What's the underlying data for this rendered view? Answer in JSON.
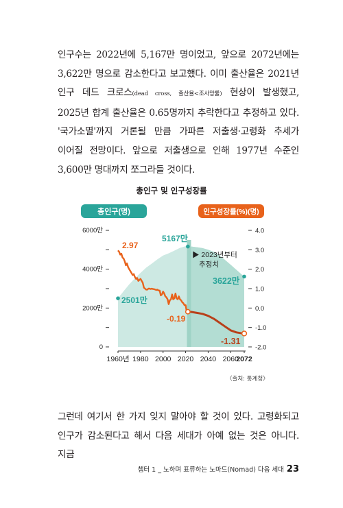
{
  "paragraph1": {
    "a": "인구수는 2022년에 5,167만 명이었고, 앞으로 2072년에는 3,622만 명으로 감소한다고 보고했다. 이미 출산율은 2021년 인구 데드 크로스",
    "small": "(dead cross, 출산율<조사망률)",
    "b": " 현상이 발생했고, 2025년 합계 출산율은 0.65명까지 추락한다고 추정하고 있다. '국가소멸'까지 거론될 만큼 가파른 저출생·고령화 추세가 이어질 전망이다. 앞으로 저출생으로 인해 1977년 수준인 3,600만 명대까지 쪼그라들 것이다."
  },
  "chart_title": "총인구 및 인구성장률",
  "chart_data": {
    "type": "area+line",
    "title": "총인구 및 인구성장률",
    "left_axis_title": "총인구(명)",
    "right_axis_title": "인구성장률(%)(명)",
    "left_ticks": [
      "6000만",
      "4000만",
      "2000만",
      "0"
    ],
    "left_tick_values": [
      6000,
      4000,
      2000,
      0
    ],
    "right_ticks": [
      "4.0",
      "3.0",
      "2.0",
      "1.0",
      "0.0",
      "-1.0",
      "-2.0"
    ],
    "right_tick_values": [
      4,
      3,
      2,
      1,
      0,
      -1,
      -2
    ],
    "x_ticks": [
      "1960년",
      "1980",
      "2000",
      "2020",
      "2040",
      "2060",
      "2072"
    ],
    "x_tick_values": [
      1960,
      1980,
      2000,
      2020,
      2040,
      2060,
      2072
    ],
    "forecast_start": 2023,
    "forecast_label": [
      "▶ 2023년부터",
      "추정치"
    ],
    "population_series": {
      "name": "총인구(명)",
      "color": "#7fc9bd",
      "x": [
        1960,
        1965,
        1970,
        1975,
        1980,
        1985,
        1990,
        1995,
        2000,
        2005,
        2010,
        2015,
        2020,
        2022,
        2025,
        2030,
        2035,
        2040,
        2045,
        2050,
        2055,
        2060,
        2065,
        2070,
        2072
      ],
      "y": [
        2501,
        2870,
        3224,
        3528,
        3812,
        4081,
        4287,
        4509,
        4701,
        4818,
        4955,
        5101,
        5184,
        5167,
        5168,
        5131,
        5086,
        5006,
        4892,
        4711,
        4476,
        4230,
        3969,
        3718,
        3622
      ]
    },
    "growth_series": {
      "name": "인구성장률(%)",
      "color": "#e8621b",
      "x": [
        1960,
        1961,
        1962,
        1963,
        1964,
        1965,
        1966,
        1967,
        1968,
        1969,
        1970,
        1971,
        1972,
        1973,
        1974,
        1975,
        1976,
        1977,
        1978,
        1979,
        1980,
        1981,
        1982,
        1983,
        1984,
        1985,
        1986,
        1987,
        1988,
        1989,
        1990,
        1991,
        1992,
        1993,
        1994,
        1995,
        1996,
        1997,
        1998,
        1999,
        2000,
        2001,
        2002,
        2003,
        2004,
        2005,
        2006,
        2007,
        2008,
        2009,
        2010,
        2011,
        2012,
        2013,
        2014,
        2015,
        2016,
        2017,
        2018,
        2019,
        2020,
        2021,
        2022
      ],
      "y": [
        2.97,
        2.9,
        2.75,
        2.8,
        2.6,
        2.55,
        2.4,
        2.2,
        2.3,
        2.1,
        2.0,
        1.9,
        1.8,
        1.7,
        1.75,
        1.6,
        1.5,
        1.55,
        1.4,
        1.45,
        1.5,
        1.4,
        1.3,
        1.05,
        1.0,
        0.95,
        0.95,
        1.0,
        1.0,
        0.98,
        1.0,
        0.98,
        0.97,
        0.95,
        0.93,
        0.95,
        0.9,
        0.9,
        0.65,
        0.7,
        0.85,
        0.75,
        0.6,
        0.55,
        0.45,
        0.2,
        0.4,
        0.45,
        0.7,
        0.45,
        0.5,
        0.75,
        0.5,
        0.45,
        0.6,
        0.45,
        0.4,
        0.3,
        0.25,
        0.15,
        0.15,
        -0.2,
        -0.19
      ]
    },
    "growth_forecast": {
      "name": "인구성장률 추정치",
      "color": "#b8401a",
      "x": [
        2022,
        2025,
        2030,
        2035,
        2040,
        2045,
        2050,
        2055,
        2060,
        2065,
        2070,
        2072
      ],
      "y": [
        -0.19,
        -0.2,
        -0.25,
        -0.3,
        -0.4,
        -0.55,
        -0.75,
        -0.95,
        -1.15,
        -1.25,
        -1.3,
        -1.31
      ]
    },
    "annotations": [
      {
        "text": "2.97",
        "series": "growth",
        "x": 1960,
        "y": 2.97
      },
      {
        "text": "5167만",
        "series": "population",
        "x": 2022,
        "y": 5167
      },
      {
        "text": "2501만",
        "series": "population",
        "x": 1960,
        "y": 2501
      },
      {
        "text": "-0.19",
        "series": "growth",
        "x": 2022,
        "y": -0.19
      },
      {
        "text": "3622만",
        "series": "population",
        "x": 2072,
        "y": 3622
      },
      {
        "text": "-1.31",
        "series": "growth",
        "x": 2072,
        "y": -1.31
      }
    ]
  },
  "source": "〈출처: 통계청〉",
  "paragraph2": "그런데 여기서 한 가지 잊지 말아야 할 것이 있다. 고령화되고 인구가 감소된다고 해서 다음 세대가 아예 없는 것은 아니다. 지금",
  "footer": {
    "chapter": "챕터 1 _ 노하며 표류하는 노마드(Nomad) 다음 세대",
    "page": "23"
  }
}
